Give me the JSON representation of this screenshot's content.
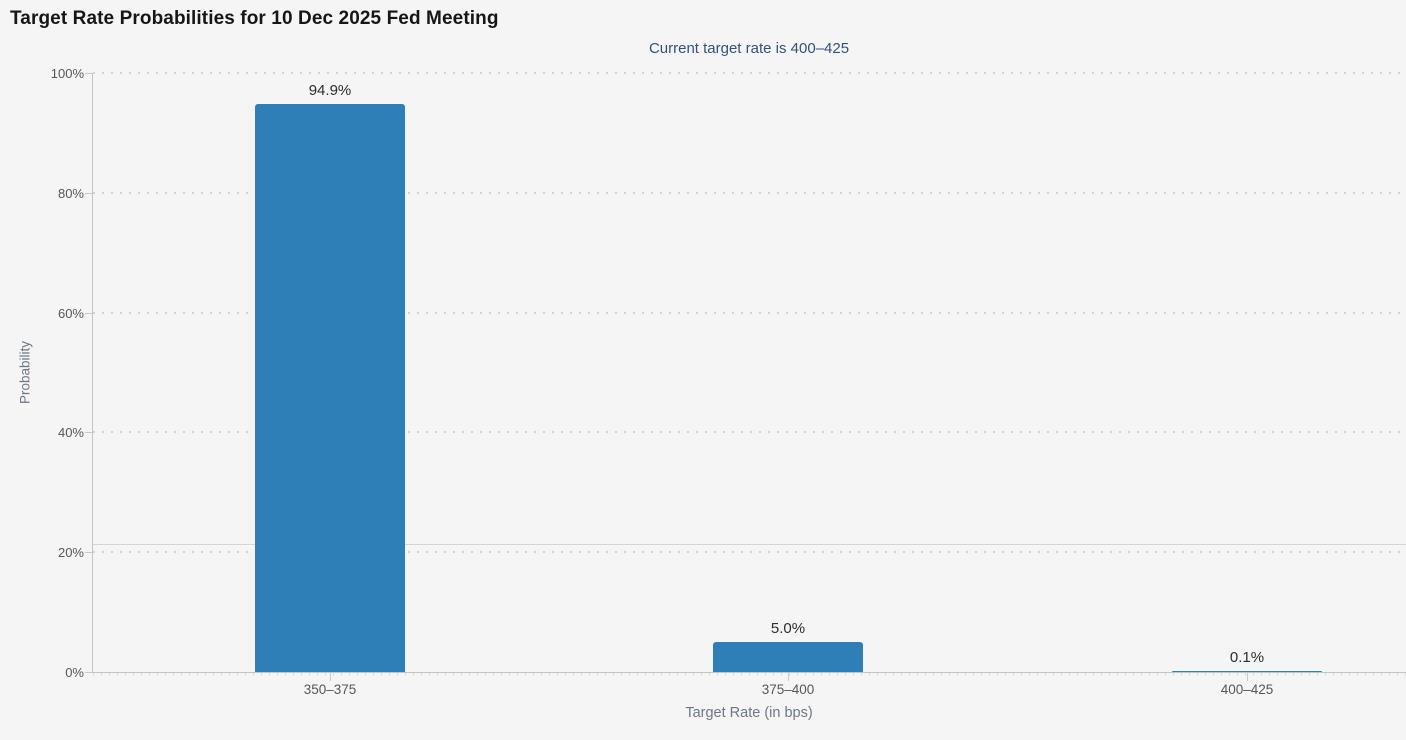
{
  "chart_data": {
    "type": "bar",
    "title": "Target Rate Probabilities for 10 Dec 2025 Fed Meeting",
    "subtitle": "Current target rate is 400–425",
    "categories": [
      "350–375",
      "375–400",
      "400–425"
    ],
    "values": [
      94.9,
      5.0,
      0.1
    ],
    "data_labels": [
      "94.9%",
      "5.0%",
      "0.1%"
    ],
    "xlabel": "Target Rate (in bps)",
    "ylabel": "Probability",
    "ylim": [
      0,
      100
    ],
    "ytick_values": [
      0,
      20,
      40,
      60,
      80,
      100
    ],
    "ytick_labels": [
      "0%",
      "20%",
      "40%",
      "60%",
      "80%",
      "100%"
    ],
    "grid": "dotted horizontal gridlines at each 20% tick",
    "legend": "none",
    "crosshair_value": 21.4,
    "colors": {
      "bar": "#2e7eb8",
      "background": "#f5f5f5",
      "title": "#161616",
      "subtitle": "#33517e",
      "axis_labels": "#575757",
      "axis_titles": "#6d7884",
      "data_labels": "#2d2d2d",
      "axis_line": "#c4c4c4",
      "gridline": "#d3d3d3"
    }
  }
}
